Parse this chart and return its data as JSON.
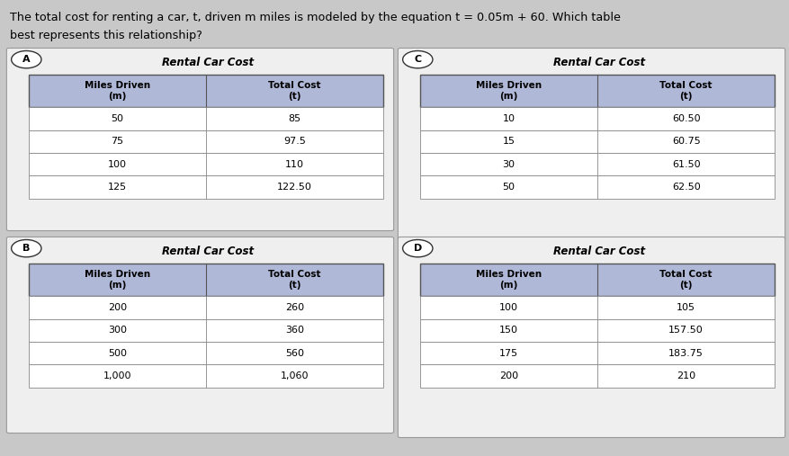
{
  "question_parts": [
    {
      "text": "The total cost for renting a car, ",
      "style": "normal"
    },
    {
      "text": "t",
      "style": "italic"
    },
    {
      "text": ", driven ",
      "style": "normal"
    },
    {
      "text": "m",
      "style": "italic"
    },
    {
      "text": " miles is modeled by the equation ",
      "style": "normal"
    },
    {
      "text": "t",
      "style": "italic"
    },
    {
      "text": " = 0.05",
      "style": "normal"
    },
    {
      "text": "m",
      "style": "italic"
    },
    {
      "text": " + 60. Which table",
      "style": "normal"
    }
  ],
  "question_line2": "best represents this relationship?",
  "bg_color": "#c8c8c8",
  "panel_bg": "#efefef",
  "table_header_color": "#b0b8d8",
  "table_header_text_color": "#000000",
  "table_border_color": "#555555",
  "table_row_color_odd": "#ffffff",
  "table_row_color_even": "#ffffff",
  "panels": [
    {
      "label": "A",
      "title": "Rental Car Cost",
      "col1_header": "Miles Driven\n(m)",
      "col2_header": "Total Cost\n(t)",
      "rows": [
        [
          "50",
          "85"
        ],
        [
          "75",
          "97.5"
        ],
        [
          "100",
          "110"
        ],
        [
          "125",
          "122.50"
        ]
      ]
    },
    {
      "label": "C",
      "title": "Rental Car Cost",
      "col1_header": "Miles Driven\n(m)",
      "col2_header": "Total Cost\n(t)",
      "rows": [
        [
          "10",
          "60.50"
        ],
        [
          "15",
          "60.75"
        ],
        [
          "30",
          "61.50"
        ],
        [
          "50",
          "62.50"
        ]
      ]
    },
    {
      "label": "B",
      "title": "Rental Car Cost",
      "col1_header": "Miles Driven\n(m)",
      "col2_header": "Total Cost\n(t)",
      "rows": [
        [
          "200",
          "260"
        ],
        [
          "300",
          "360"
        ],
        [
          "500",
          "560"
        ],
        [
          "1,000",
          "1,060"
        ]
      ]
    },
    {
      "label": "D",
      "title": "Rental Car Cost",
      "col1_header": "Miles Driven\n(m)",
      "col2_header": "Total Cost\n(t)",
      "rows": [
        [
          "100",
          "105"
        ],
        [
          "150",
          "157.50"
        ],
        [
          "175",
          "183.75"
        ],
        [
          "200",
          "210"
        ]
      ]
    }
  ]
}
